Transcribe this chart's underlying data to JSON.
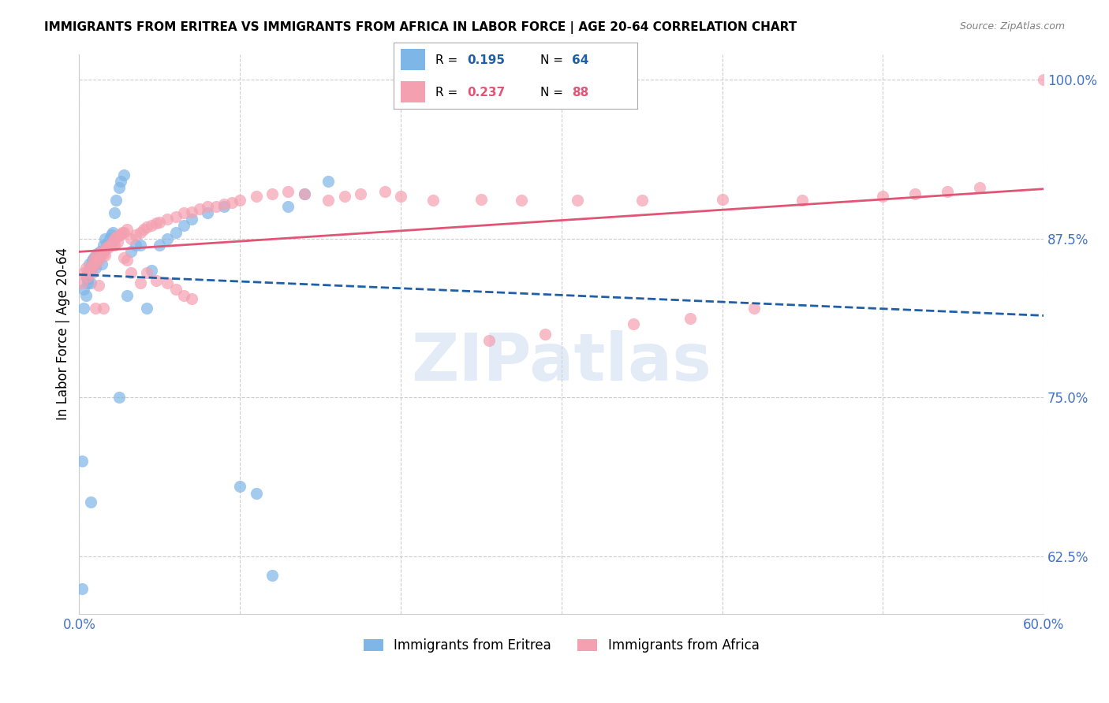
{
  "title": "IMMIGRANTS FROM ERITREA VS IMMIGRANTS FROM AFRICA IN LABOR FORCE | AGE 20-64 CORRELATION CHART",
  "source": "Source: ZipAtlas.com",
  "ylabel": "In Labor Force | Age 20-64",
  "xmin": 0.0,
  "xmax": 0.6,
  "ymin": 0.58,
  "ymax": 1.02,
  "yticks": [
    0.625,
    0.75,
    0.875,
    1.0
  ],
  "ytick_labels": [
    "62.5%",
    "75.0%",
    "87.5%",
    "100.0%"
  ],
  "xticks": [
    0.0,
    0.1,
    0.2,
    0.3,
    0.4,
    0.5,
    0.6
  ],
  "series1_color": "#7EB6E8",
  "series2_color": "#F4A0B0",
  "trendline1_color": "#1F5FA6",
  "trendline2_color": "#E05575",
  "legend_r1": "0.195",
  "legend_n1": "64",
  "legend_r2": "0.237",
  "legend_n2": "88",
  "legend_label1": "Immigrants from Eritrea",
  "legend_label2": "Immigrants from Africa",
  "watermark": "ZIPatlas",
  "watermark_color": "#C8D8F0",
  "axis_color": "#4472C4",
  "grid_color": "#CCCCCC",
  "background_color": "#FFFFFF",
  "series1_x": [
    0.002,
    0.003,
    0.003,
    0.004,
    0.004,
    0.005,
    0.005,
    0.005,
    0.006,
    0.006,
    0.006,
    0.007,
    0.007,
    0.007,
    0.007,
    0.008,
    0.008,
    0.008,
    0.009,
    0.009,
    0.01,
    0.01,
    0.01,
    0.011,
    0.011,
    0.012,
    0.012,
    0.013,
    0.014,
    0.015,
    0.015,
    0.016,
    0.017,
    0.018,
    0.019,
    0.02,
    0.021,
    0.022,
    0.023,
    0.025,
    0.026,
    0.028,
    0.03,
    0.032,
    0.035,
    0.038,
    0.042,
    0.045,
    0.05,
    0.055,
    0.06,
    0.065,
    0.07,
    0.08,
    0.09,
    0.1,
    0.11,
    0.12,
    0.13,
    0.14,
    0.155,
    0.002,
    0.007,
    0.025
  ],
  "series1_y": [
    0.7,
    0.82,
    0.835,
    0.83,
    0.845,
    0.84,
    0.843,
    0.848,
    0.85,
    0.848,
    0.855,
    0.85,
    0.852,
    0.853,
    0.84,
    0.855,
    0.858,
    0.853,
    0.858,
    0.86,
    0.855,
    0.852,
    0.86,
    0.858,
    0.863,
    0.862,
    0.86,
    0.865,
    0.855,
    0.865,
    0.87,
    0.875,
    0.87,
    0.87,
    0.875,
    0.878,
    0.88,
    0.895,
    0.905,
    0.915,
    0.92,
    0.925,
    0.83,
    0.865,
    0.87,
    0.87,
    0.82,
    0.85,
    0.87,
    0.875,
    0.88,
    0.885,
    0.89,
    0.895,
    0.9,
    0.68,
    0.675,
    0.61,
    0.9,
    0.91,
    0.92,
    0.6,
    0.668,
    0.75
  ],
  "series2_x": [
    0.002,
    0.003,
    0.004,
    0.005,
    0.006,
    0.007,
    0.008,
    0.008,
    0.009,
    0.01,
    0.01,
    0.011,
    0.012,
    0.013,
    0.014,
    0.015,
    0.016,
    0.017,
    0.018,
    0.019,
    0.02,
    0.021,
    0.022,
    0.023,
    0.025,
    0.026,
    0.027,
    0.028,
    0.03,
    0.032,
    0.035,
    0.038,
    0.04,
    0.042,
    0.045,
    0.048,
    0.05,
    0.055,
    0.06,
    0.065,
    0.07,
    0.075,
    0.08,
    0.085,
    0.09,
    0.095,
    0.1,
    0.11,
    0.12,
    0.13,
    0.14,
    0.155,
    0.165,
    0.175,
    0.19,
    0.2,
    0.22,
    0.25,
    0.275,
    0.31,
    0.35,
    0.4,
    0.45,
    0.5,
    0.52,
    0.54,
    0.56,
    0.01,
    0.012,
    0.015,
    0.022,
    0.024,
    0.028,
    0.03,
    0.032,
    0.038,
    0.042,
    0.048,
    0.055,
    0.06,
    0.065,
    0.07,
    0.6,
    0.42,
    0.38,
    0.345,
    0.29,
    0.255
  ],
  "series2_y": [
    0.84,
    0.848,
    0.852,
    0.845,
    0.848,
    0.852,
    0.855,
    0.848,
    0.858,
    0.855,
    0.862,
    0.86,
    0.858,
    0.862,
    0.865,
    0.863,
    0.862,
    0.868,
    0.868,
    0.87,
    0.87,
    0.872,
    0.875,
    0.876,
    0.878,
    0.878,
    0.88,
    0.88,
    0.882,
    0.875,
    0.878,
    0.88,
    0.882,
    0.884,
    0.885,
    0.887,
    0.888,
    0.89,
    0.892,
    0.895,
    0.896,
    0.898,
    0.9,
    0.9,
    0.902,
    0.903,
    0.905,
    0.908,
    0.91,
    0.912,
    0.91,
    0.905,
    0.908,
    0.91,
    0.912,
    0.908,
    0.905,
    0.906,
    0.905,
    0.905,
    0.905,
    0.906,
    0.905,
    0.908,
    0.91,
    0.912,
    0.915,
    0.82,
    0.838,
    0.82,
    0.87,
    0.872,
    0.86,
    0.858,
    0.848,
    0.84,
    0.848,
    0.842,
    0.84,
    0.835,
    0.83,
    0.828,
    1.0,
    0.82,
    0.812,
    0.808,
    0.8,
    0.795
  ]
}
